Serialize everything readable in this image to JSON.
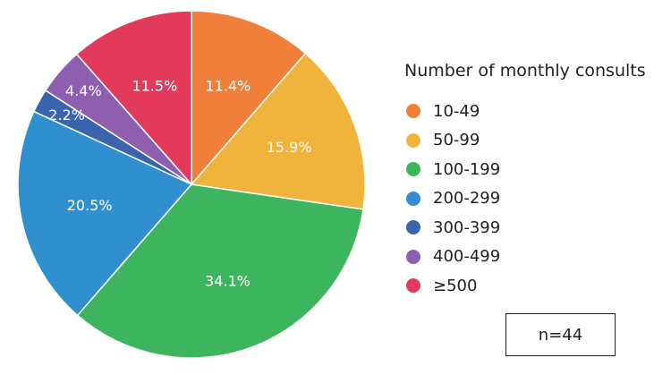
{
  "chart_data": {
    "type": "pie",
    "legend_title": "Number of monthly consults",
    "legend_placement": "right",
    "note": "n=44",
    "slices": [
      {
        "label": "10-49",
        "value": 11.4,
        "value_label": "11.4%",
        "color": "#f07f3c"
      },
      {
        "label": "50-99",
        "value": 15.9,
        "value_label": "15.9%",
        "color": "#f0b43c"
      },
      {
        "label": "100-199",
        "value": 34.1,
        "value_label": "34.1%",
        "color": "#3db55e"
      },
      {
        "label": "200-299",
        "value": 20.5,
        "value_label": "20.5%",
        "color": "#2f8fcf"
      },
      {
        "label": "300-399",
        "value": 2.2,
        "value_label": "2.2%",
        "color": "#3a64ad"
      },
      {
        "label": "400-499",
        "value": 4.4,
        "value_label": "4.4%",
        "color": "#8e5fae"
      },
      {
        "label": "≥500",
        "value": 11.5,
        "value_label": "11.5%",
        "color": "#e33a5b"
      }
    ]
  }
}
